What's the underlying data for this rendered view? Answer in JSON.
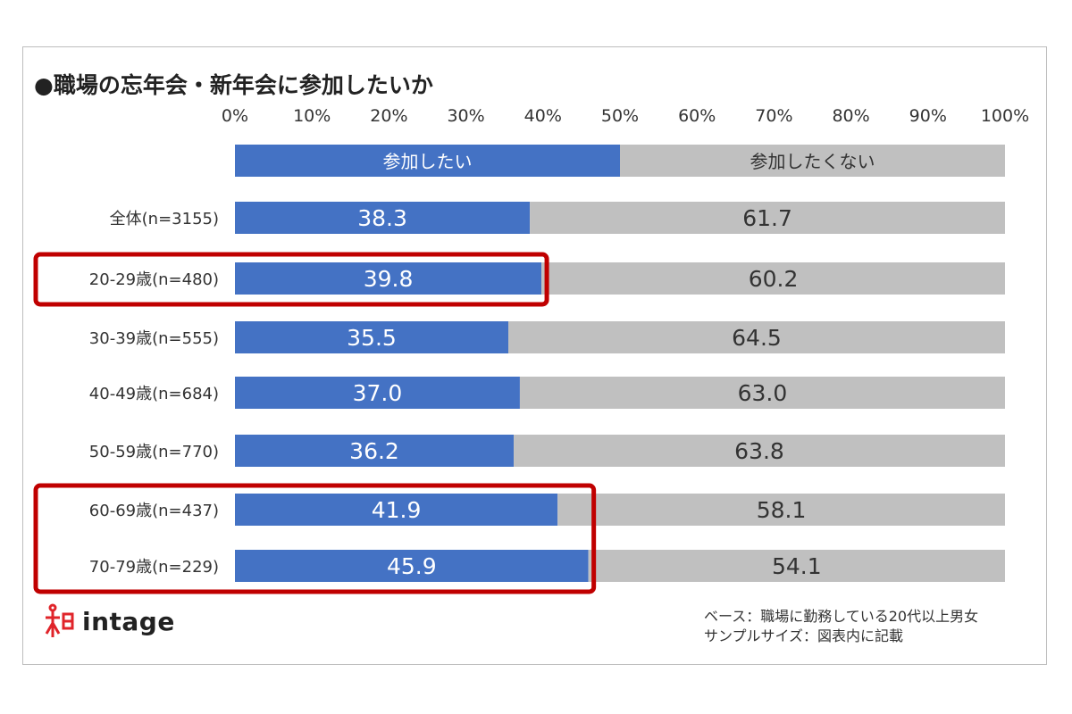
{
  "chart_data": {
    "type": "bar",
    "stacked": true,
    "orientation": "horizontal",
    "title": "●職場の忘年会・新年会に参加したいか",
    "xlim": [
      0,
      100
    ],
    "xticks": [
      "0%",
      "10%",
      "20%",
      "30%",
      "40%",
      "50%",
      "60%",
      "70%",
      "80%",
      "90%",
      "100%"
    ],
    "legend": {
      "placement": "top",
      "entries": [
        "参加したい",
        "参加したくない"
      ],
      "values": [
        50,
        50
      ]
    },
    "categories": [
      "全体(n=3155)",
      "20-29歳(n=480)",
      "30-39歳(n=555)",
      "40-49歳(n=684)",
      "50-59歳(n=770)",
      "60-69歳(n=437)",
      "70-79歳(n=229)"
    ],
    "series": [
      {
        "name": "参加したい",
        "color": "#4472c4",
        "values": [
          38.3,
          39.8,
          35.5,
          37.0,
          36.2,
          41.9,
          45.9
        ],
        "labels": [
          "38.3",
          "39.8",
          "35.5",
          "37.0",
          "36.2",
          "41.9",
          "45.9"
        ]
      },
      {
        "name": "参加したくない",
        "color": "#c0c0c0",
        "values": [
          61.7,
          60.2,
          64.5,
          63.0,
          63.8,
          58.1,
          54.1
        ],
        "labels": [
          "61.7",
          "60.2",
          "64.5",
          "63.0",
          "63.8",
          "58.1",
          "54.1"
        ]
      }
    ],
    "highlights": [
      [
        1
      ],
      [
        5,
        6
      ]
    ],
    "highlight_color": "#c00000",
    "grid": false
  },
  "logo": {
    "text": "intage",
    "color": "#e0242a"
  },
  "notes": [
    "ベース：職場に勤務している20代以上男女",
    "サンプルサイズ：図表内に記載"
  ]
}
